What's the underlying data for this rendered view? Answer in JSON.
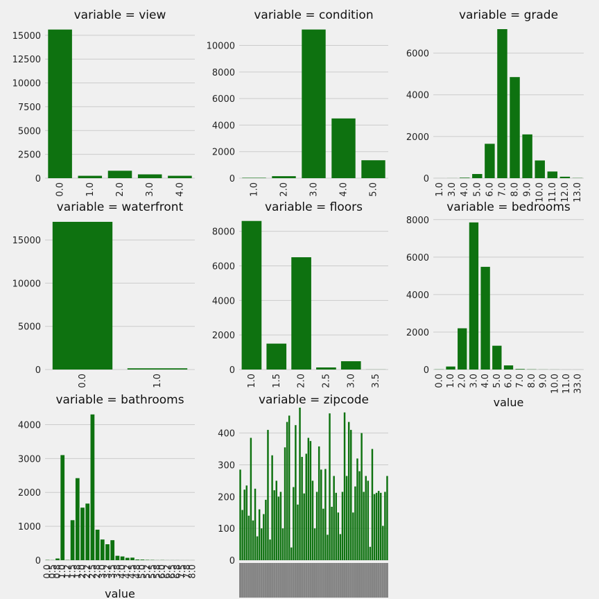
{
  "chart_data": [
    {
      "type": "bar",
      "title": "variable = view",
      "xlabel": "",
      "categories": [
        "0.0",
        "1.0",
        "2.0",
        "3.0",
        "4.0"
      ],
      "values": [
        15600,
        250,
        780,
        400,
        250
      ],
      "yticks": [
        0,
        2500,
        5000,
        7500,
        10000,
        12500,
        15000
      ],
      "ylim": [
        0,
        16300
      ],
      "color": "#0e7210",
      "grid": true
    },
    {
      "type": "bar",
      "title": "variable = condition",
      "xlabel": "",
      "categories": [
        "1.0",
        "2.0",
        "3.0",
        "4.0",
        "5.0"
      ],
      "values": [
        30,
        150,
        11200,
        4500,
        1350
      ],
      "yticks": [
        0,
        2000,
        4000,
        6000,
        8000,
        10000
      ],
      "ylim": [
        0,
        11700
      ],
      "color": "#0e7210",
      "grid": true
    },
    {
      "type": "bar",
      "title": "variable = grade",
      "xlabel": "",
      "categories": [
        "1.0",
        "3.0",
        "4.0",
        "5.0",
        "6.0",
        "7.0",
        "8.0",
        "9.0",
        "10.0",
        "11.0",
        "12.0",
        "13.0"
      ],
      "values": [
        1,
        3,
        25,
        200,
        1650,
        7150,
        4850,
        2100,
        850,
        320,
        70,
        10
      ],
      "yticks": [
        0,
        2000,
        4000,
        6000
      ],
      "ylim": [
        0,
        7450
      ],
      "color": "#0e7210",
      "grid": true
    },
    {
      "type": "bar",
      "title": "variable = waterfront",
      "xlabel": "",
      "categories": [
        "0.0",
        "1.0"
      ],
      "values": [
        17100,
        140
      ],
      "yticks": [
        0,
        5000,
        10000,
        15000
      ],
      "ylim": [
        0,
        17900
      ],
      "color": "#0e7210",
      "grid": true
    },
    {
      "type": "bar",
      "title": "variable = floors",
      "xlabel": "",
      "categories": [
        "1.0",
        "1.5",
        "2.0",
        "2.5",
        "3.0",
        "3.5"
      ],
      "values": [
        8600,
        1500,
        6500,
        120,
        480,
        5
      ],
      "yticks": [
        0,
        2000,
        4000,
        6000,
        8000
      ],
      "ylim": [
        0,
        8950
      ],
      "color": "#0e7210",
      "grid": true
    },
    {
      "type": "bar",
      "title": "variable = bedrooms",
      "xlabel": "value",
      "categories": [
        "0.0",
        "1.0",
        "2.0",
        "3.0",
        "4.0",
        "5.0",
        "6.0",
        "7.0",
        "8.0",
        "9.0",
        "10.0",
        "11.0",
        "33.0"
      ],
      "values": [
        10,
        160,
        2200,
        7850,
        5480,
        1270,
        220,
        30,
        12,
        5,
        3,
        1,
        1
      ],
      "yticks": [
        0,
        2000,
        4000,
        6000,
        8000
      ],
      "ylim": [
        0,
        8250
      ],
      "color": "#0e7210",
      "grid": true
    },
    {
      "type": "bar",
      "title": "variable = bathrooms",
      "xlabel": "value",
      "categories": [
        "0.0",
        "0.5",
        "0.75",
        "1.0",
        "1.25",
        "1.5",
        "1.75",
        "2.0",
        "2.25",
        "2.5",
        "2.75",
        "3.0",
        "3.25",
        "3.5",
        "3.75",
        "4.0",
        "4.25",
        "4.5",
        "4.75",
        "5.0",
        "5.25",
        "5.5",
        "5.75",
        "6.0",
        "6.25",
        "6.5",
        "6.75",
        "7.5",
        "7.75",
        "8.0"
      ],
      "tick_labels": [
        "0.0",
        "0.5",
        "0.8",
        "1.0",
        "1.2",
        "1.5",
        "1.8",
        "2.0",
        "2.2",
        "2.5",
        "2.8",
        "3.0",
        "3.2",
        "3.5",
        "3.8",
        "4.0",
        "4.2",
        "4.5",
        "4.8",
        "5.0",
        "5.2",
        "5.5",
        "5.8",
        "6.0",
        "6.2",
        "6.5",
        "6.8",
        "7.5",
        "7.8",
        "8.0"
      ],
      "values": [
        8,
        4,
        50,
        3100,
        8,
        1180,
        2420,
        1550,
        1670,
        4300,
        900,
        610,
        470,
        590,
        130,
        110,
        70,
        75,
        20,
        18,
        10,
        8,
        3,
        5,
        2,
        2,
        2,
        1,
        1,
        1
      ],
      "yticks": [
        0,
        1000,
        2000,
        3000,
        4000
      ],
      "ylim": [
        0,
        4500
      ],
      "color": "#0e7210",
      "grid": true
    },
    {
      "type": "bar",
      "title": "variable = zipcode",
      "xlabel": "",
      "categories_visible": false,
      "values": [
        285,
        158,
        222,
        235,
        140,
        385,
        125,
        225,
        75,
        160,
        100,
        145,
        190,
        410,
        65,
        330,
        220,
        250,
        200,
        215,
        100,
        355,
        435,
        455,
        40,
        230,
        425,
        175,
        480,
        325,
        210,
        335,
        385,
        375,
        250,
        100,
        215,
        358,
        285,
        162,
        287,
        80,
        462,
        168,
        265,
        212,
        150,
        82,
        215,
        465,
        265,
        435,
        410,
        150,
        232,
        320,
        280,
        400,
        215,
        265,
        250,
        42,
        350,
        208,
        212,
        218,
        212,
        108,
        215,
        265
      ],
      "yticks": [
        0,
        100,
        200,
        300,
        400
      ],
      "ylim": [
        0,
        480
      ],
      "color": "#0e7210",
      "grid": true
    }
  ]
}
